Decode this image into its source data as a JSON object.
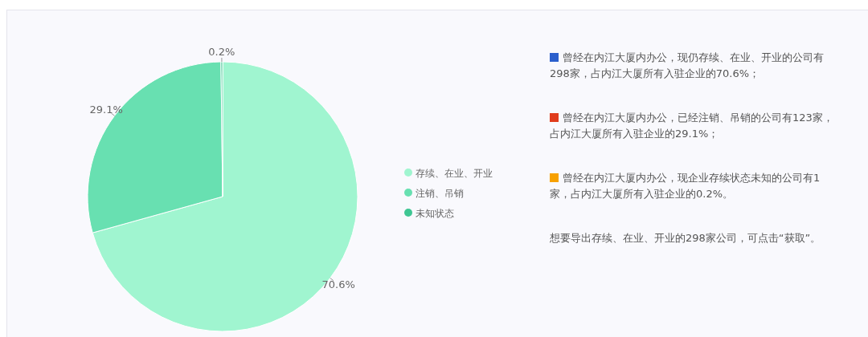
{
  "chart_data": {
    "type": "pie",
    "categories": [
      "存续、在业、开业",
      "注销、吊销",
      "未知状态"
    ],
    "values": [
      70.6,
      29.1,
      0.2
    ],
    "colors": [
      "#a0f5d0",
      "#68e0b1",
      "#3fc693"
    ],
    "value_labels": [
      "70.6%",
      "29.1%",
      "0.2%"
    ],
    "legend": "right",
    "annotations": [
      "曾经在内江大厦内办公，现仍存续、在业、开业的公司有298家，占内江大厦所有入驻企业的70.6%；",
      "曾经在内江大厦内办公，已经注销、吊销的公司有123家，占内江大厦所有入驻企业的29.1%；",
      "曾经在内江大厦内办公，现企业存续状态未知的公司有1家，占内江大厦所有入驻企业的0.2%。",
      "想要导出存续、在业、开业的298家公司，可点击“获取”。"
    ]
  }
}
